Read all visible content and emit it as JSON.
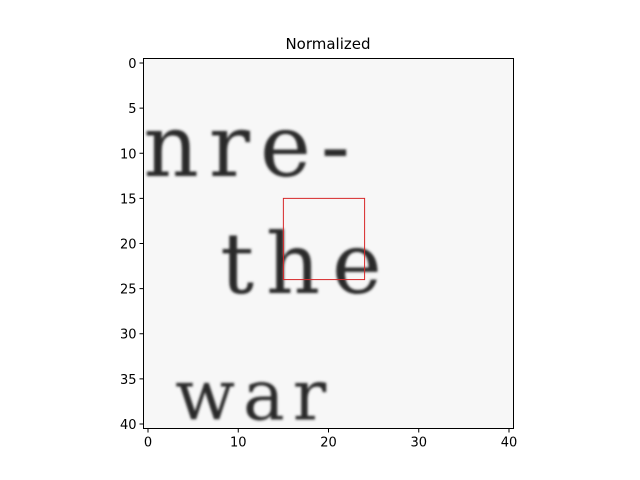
{
  "chart_data": {
    "type": "heatmap",
    "title": "Normalized",
    "xlabel": "",
    "ylabel": "",
    "colormap": "grayscale-inverted",
    "image_size": [
      41,
      41
    ],
    "xlim": [
      -0.5,
      40.5
    ],
    "ylim": [
      40.5,
      -0.5
    ],
    "xticks": [
      0,
      10,
      20,
      30,
      40
    ],
    "yticks": [
      0,
      5,
      10,
      15,
      20,
      25,
      30,
      35,
      40
    ],
    "image_text_lines": [
      "nre-",
      "the",
      "war"
    ],
    "highlight_box": {
      "x": [
        15,
        24
      ],
      "y": [
        15,
        24
      ],
      "color": "#d62728"
    }
  }
}
